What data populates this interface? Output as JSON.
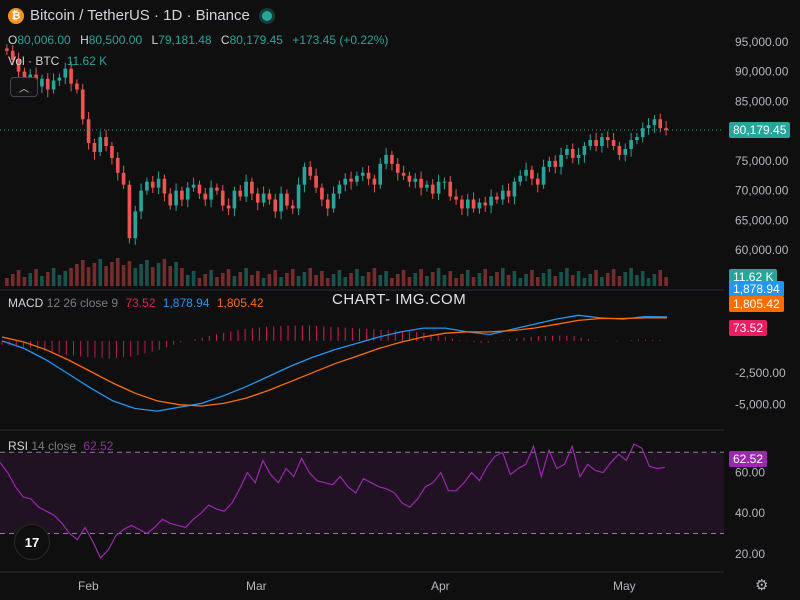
{
  "header": {
    "title": "Bitcoin / TetherUS · 1D · Binance",
    "coin_glyph": "₿",
    "ohlc": [
      {
        "key": "O",
        "value": "80,006.00"
      },
      {
        "key": "H",
        "value": "80,500.00"
      },
      {
        "key": "L",
        "value": "79,181.48"
      },
      {
        "key": "C",
        "value": "80,179.45"
      }
    ],
    "change": "+173.45 (+0.22%)",
    "vol_label": "Vol · BTC",
    "vol_value": "11.62 K"
  },
  "macd_legend": {
    "name": "MACD",
    "params": "12 26 close 9",
    "hist": "73.52",
    "macd": "1,878.94",
    "signal": "1,805.42"
  },
  "rsi_legend": {
    "name": "RSI",
    "params": "14 close",
    "value": "62.52"
  },
  "watermark": "CHART- IMG.COM",
  "tags": {
    "last_price": "80,179.45",
    "volume": "11.62 K",
    "macd": "1,878.94",
    "signal": "1,805.42",
    "hist": "73.52",
    "rsi": "62.52"
  },
  "colors": {
    "up": "#26a69a",
    "down": "#ef5350",
    "macd": "#2196f3",
    "signal": "#ff6d00",
    "rsi": "#9c27b0",
    "hist_neg": "#e91e63"
  },
  "chart_data": [
    {
      "type": "candlestick",
      "title": "Bitcoin / TetherUS · 1D · Binance",
      "x_ticks": [
        "Feb",
        "Mar",
        "Apr",
        "May"
      ],
      "y_ticks": [
        "60,000.00",
        "65,000.00",
        "70,000.00",
        "75,000.00",
        "80,000.00",
        "85,000.00",
        "90,000.00",
        "95,000.00"
      ],
      "ylim": [
        58000,
        97000
      ],
      "last_price": 80179.45,
      "closes": [
        93500,
        92000,
        90000,
        88500,
        89500,
        87500,
        88800,
        87000,
        88500,
        89000,
        90500,
        88000,
        87000,
        82000,
        78000,
        76500,
        79000,
        77500,
        75500,
        73000,
        71000,
        62000,
        66500,
        70000,
        71500,
        70500,
        72000,
        69500,
        67500,
        70000,
        68500,
        70500,
        71000,
        69500,
        68500,
        70500,
        70000,
        67500,
        67000,
        70000,
        69000,
        71500,
        69500,
        68000,
        69500,
        68500,
        66500,
        69500,
        67500,
        67000,
        71000,
        74000,
        72500,
        70500,
        68500,
        67000,
        69500,
        71000,
        72000,
        71500,
        72500,
        73000,
        72000,
        71000,
        74500,
        76000,
        74500,
        73000,
        72500,
        71500,
        72000,
        70500,
        71000,
        69500,
        71500,
        71500,
        69000,
        68500,
        67000,
        68500,
        67000,
        68000,
        67500,
        69000,
        68500,
        70000,
        69000,
        71500,
        72500,
        73500,
        72000,
        71000,
        74000,
        75000,
        74000,
        76000,
        77000,
        75500,
        76000,
        77500,
        78500,
        77500,
        79000,
        78500,
        77500,
        76000,
        77000,
        78500,
        79000,
        80500,
        81000,
        82000,
        80500,
        80179
      ],
      "volume_ticks": [
        "11.62 K"
      ]
    },
    {
      "type": "line",
      "title": "MACD 12 26 close 9",
      "series": [
        {
          "name": "MACD",
          "values": [
            0,
            -600,
            -1500,
            -2600,
            -3700,
            -4700,
            -5300,
            -5500,
            -5200,
            -4900,
            -4300,
            -3600,
            -2800,
            -2000,
            -1300,
            -700,
            -200,
            300,
            700,
            1000,
            1000,
            700,
            500,
            900,
            1300,
            1700,
            2000,
            1800,
            1700,
            1900,
            1879
          ]
        },
        {
          "name": "signal",
          "values": [
            300,
            -100,
            -700,
            -1500,
            -2400,
            -3300,
            -4100,
            -4700,
            -5000,
            -5100,
            -4900,
            -4500,
            -3900,
            -3200,
            -2500,
            -1800,
            -1200,
            -600,
            -100,
            300,
            600,
            700,
            700,
            800,
            1000,
            1300,
            1600,
            1750,
            1750,
            1800,
            1805
          ]
        }
      ],
      "histogram": [
        -300,
        -500,
        -800,
        -1100,
        -1300,
        -1400,
        -1200,
        -800,
        -200,
        200,
        600,
        900,
        1100,
        1200,
        1200,
        1100,
        1000,
        900,
        800,
        700,
        400,
        0,
        -200,
        100,
        300,
        400,
        400,
        50,
        -50,
        100,
        73.52
      ],
      "y_ticks": [
        "-2,500.00",
        "-5,000.00"
      ],
      "ylim": [
        -6200,
        3200
      ]
    },
    {
      "type": "line",
      "title": "RSI 14 close",
      "series": [
        {
          "name": "RSI",
          "values": [
            65,
            60,
            53,
            48,
            47,
            43,
            41,
            39,
            35,
            30,
            27,
            33,
            26,
            18,
            22,
            29,
            32,
            34,
            32,
            30,
            33,
            37,
            35,
            34,
            33,
            37,
            40,
            44,
            42,
            41,
            45,
            52,
            60,
            55,
            66,
            59,
            55,
            62,
            58,
            67,
            60,
            56,
            55,
            54,
            58,
            53,
            50,
            57,
            55,
            53,
            52,
            50,
            45,
            43,
            47,
            53,
            55,
            60,
            51,
            51,
            55,
            60,
            56,
            63,
            68,
            70,
            59,
            62,
            64,
            73,
            58,
            71,
            62,
            64,
            73,
            58,
            64,
            61,
            60,
            65,
            69,
            66,
            74,
            72,
            63,
            62,
            62.52
          ]
        }
      ],
      "bands": [
        30,
        70
      ],
      "y_ticks": [
        "20.00",
        "40.00",
        "60.00"
      ],
      "ylim": [
        14,
        78
      ]
    }
  ]
}
